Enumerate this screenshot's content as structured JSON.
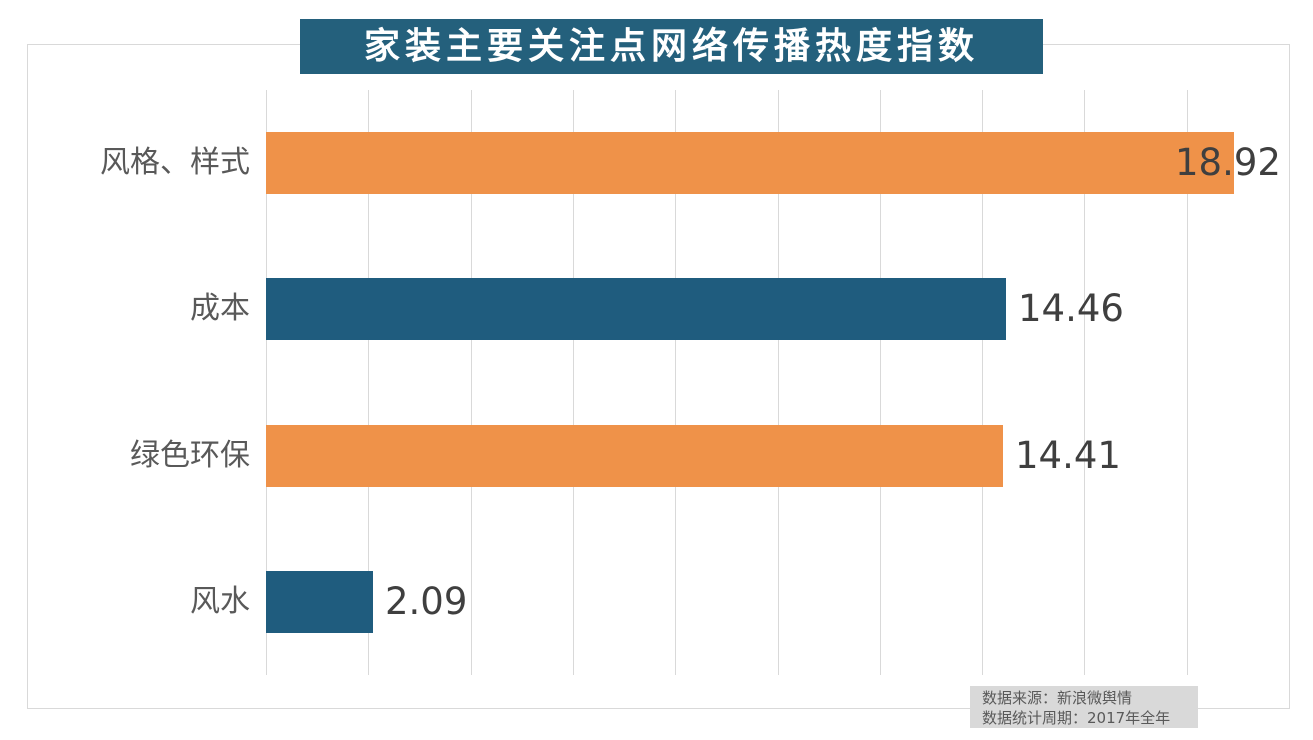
{
  "chart": {
    "title": "家装主要关注点网络传播热度指数"
  },
  "source": {
    "line1": "数据来源：新浪微舆情",
    "line2": "数据统计周期：2017年全年"
  },
  "colors": {
    "title_bg": "#24607c",
    "title_text": "#ffffff",
    "orange": "#ef9249",
    "teal": "#1f5c7e",
    "grid": "#d9d9d9",
    "frame": "#d9d9d9",
    "source_bg": "#d9d9d9",
    "source_text": "#595959",
    "category_text": "#595959",
    "value_text": "#3f3f3f"
  },
  "chart_data": {
    "type": "bar",
    "orientation": "horizontal",
    "title": "家装主要关注点网络传播热度指数",
    "categories": [
      "风格、样式",
      "成本",
      "绿色环保",
      "风水"
    ],
    "values": [
      18.92,
      14.46,
      14.41,
      2.09
    ],
    "value_labels": [
      "18.92",
      "14.46",
      "14.41",
      "2.09"
    ],
    "bar_colors": [
      "#ef9249",
      "#1f5c7e",
      "#ef9249",
      "#1f5c7e"
    ],
    "xlim": [
      0,
      20
    ],
    "gridline_interval": 2,
    "grid": true,
    "legend": false,
    "xlabel": "",
    "ylabel": ""
  }
}
